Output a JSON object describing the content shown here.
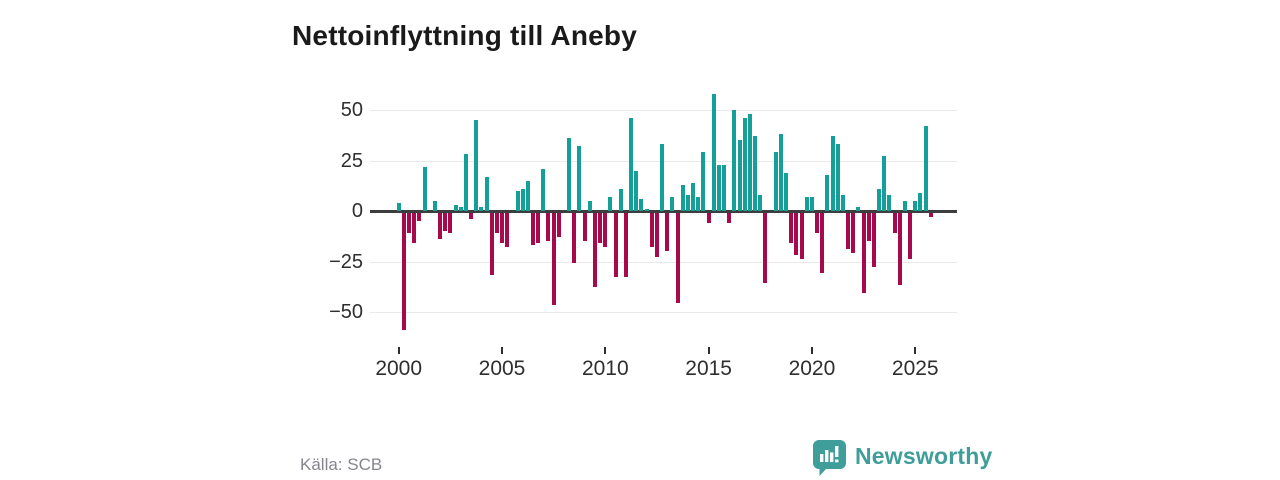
{
  "title": "Nettoinflyttning till Aneby",
  "source": {
    "label": "Källa: SCB"
  },
  "branding": {
    "name": "Newsworthy",
    "icon": "newsworthy-speech-bubble-bar-chart-icon"
  },
  "colors": {
    "positive_bar": "#14a098",
    "negative_bar": "#a60a4d",
    "zero_line": "#3d3d3d",
    "gridline": "#e9e9e9",
    "axis_text": "#2e2e2e",
    "source_text": "#85858e",
    "brand_teal": "#3f9e99",
    "title_text": "#1a1a1a"
  },
  "chart_data": {
    "type": "bar",
    "title": "Nettoinflyttning till Aneby",
    "frequency": "quarterly",
    "start_period": "2000-Q1",
    "end_period": "2025-Q4",
    "values": [
      4,
      -58,
      -10,
      -15,
      -4,
      22,
      0,
      5,
      -13,
      -9,
      -10,
      3,
      2,
      28,
      -3,
      45,
      2,
      17,
      -31,
      -10,
      -15,
      -17,
      0,
      10,
      11,
      15,
      -16,
      -15,
      21,
      -14,
      -46,
      -12,
      0,
      36,
      -25,
      32,
      -14,
      5,
      -37,
      -15,
      -17,
      7,
      -32,
      11,
      -32,
      46,
      20,
      6,
      1,
      -17,
      -22,
      33,
      -19,
      7,
      -45,
      13,
      8,
      14,
      7,
      29,
      -5,
      58,
      23,
      23,
      -5,
      50,
      35,
      46,
      48,
      37,
      8,
      -35,
      0,
      29,
      38,
      19,
      -15,
      -21,
      -23,
      7,
      7,
      -10,
      -30,
      18,
      37,
      33,
      8,
      -18,
      -20,
      2,
      -40,
      -14,
      -27,
      11,
      27,
      8,
      -10,
      -36,
      5,
      -23,
      5,
      9,
      42,
      -2
    ],
    "xticks": [
      2000,
      2005,
      2010,
      2015,
      2020,
      2025
    ],
    "yticks": [
      50,
      25,
      0,
      -25,
      -50
    ],
    "ylim": [
      -62,
      60
    ],
    "grid": "horizontal",
    "legend": "none"
  }
}
